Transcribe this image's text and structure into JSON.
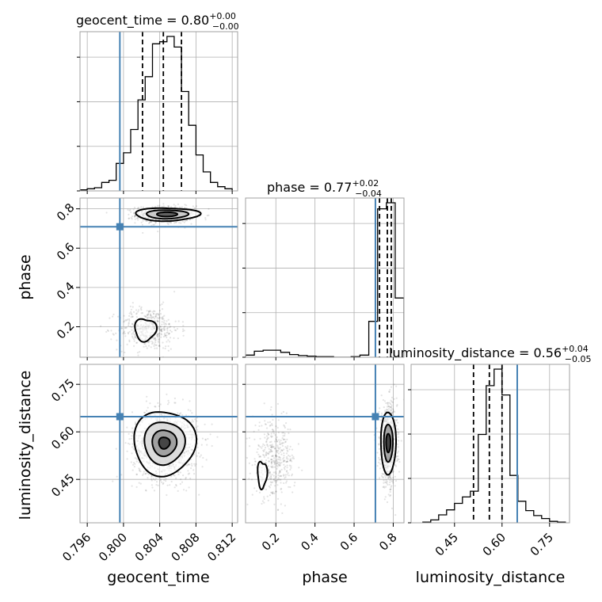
{
  "chart_data": {
    "type": "scatter",
    "subtype": "corner-plot",
    "parameters": [
      "geocent_time",
      "phase",
      "luminosity_distance"
    ],
    "titles": [
      {
        "param": "geocent_time",
        "text": "geocent_time = 0.80",
        "sup": "+0.00",
        "sub": "−0.00"
      },
      {
        "param": "phase",
        "text": "phase = 0.77",
        "sup": "+0.02",
        "sub": "−0.04"
      },
      {
        "param": "luminosity_distance",
        "text": "luminosity_distance = 0.56",
        "sup": "+0.04",
        "sub": "−0.05"
      }
    ],
    "ranges": {
      "geocent_time": [
        0.7952,
        0.8126
      ],
      "phase": [
        0.045,
        0.855
      ],
      "luminosity_distance": [
        0.313,
        0.813
      ]
    },
    "ticks": {
      "geocent_time": [
        0.796,
        0.8,
        0.804,
        0.808,
        0.812
      ],
      "phase": [
        0.2,
        0.4,
        0.6,
        0.8
      ],
      "luminosity_distance": [
        0.45,
        0.6,
        0.75
      ]
    },
    "tick_labels": {
      "geocent_time": [
        "0.796",
        "0.800",
        "0.804",
        "0.808",
        "0.812"
      ],
      "phase": [
        "0.2",
        "0.4",
        "0.6",
        "0.8"
      ],
      "luminosity_distance": [
        "0.45",
        "0.60",
        "0.75"
      ]
    },
    "truths": {
      "geocent_time": 0.7996,
      "phase": 0.709,
      "luminosity_distance": 0.648
    },
    "truth_color": "#4682b4",
    "quantiles": {
      "geocent_time": [
        0.8021,
        0.8044,
        0.8064
      ],
      "phase": [
        0.73,
        0.77,
        0.79
      ],
      "luminosity_distance": [
        0.51,
        0.56,
        0.6
      ]
    },
    "histograms": {
      "geocent_time": {
        "edges": [
          0.7952,
          0.796,
          0.7968,
          0.7976,
          0.7984,
          0.7992,
          0.8,
          0.8008,
          0.8016,
          0.8024,
          0.8032,
          0.804,
          0.8048,
          0.8056,
          0.8064,
          0.8072,
          0.808,
          0.8088,
          0.8096,
          0.8104,
          0.8112,
          0.812
        ],
        "counts": [
          1,
          2,
          3,
          8,
          10,
          26,
          36,
          58,
          86,
          108,
          139,
          141,
          146,
          136,
          94,
          62,
          34,
          18,
          8,
          4,
          2
        ]
      },
      "phase": {
        "edges": [
          0.045,
          0.09,
          0.135,
          0.18,
          0.225,
          0.27,
          0.315,
          0.36,
          0.405,
          0.45,
          0.495,
          0.54,
          0.585,
          0.63,
          0.675,
          0.72,
          0.765,
          0.81,
          0.855
        ],
        "counts": [
          4,
          11,
          13,
          13,
          9,
          5,
          3,
          2,
          1,
          1,
          0,
          0,
          1,
          4,
          66,
          273,
          284,
          109
        ]
      },
      "luminosity_distance": {
        "edges": [
          0.35,
          0.375,
          0.4,
          0.425,
          0.45,
          0.475,
          0.5,
          0.525,
          0.55,
          0.575,
          0.6,
          0.625,
          0.65,
          0.675,
          0.7,
          0.725,
          0.75,
          0.775,
          0.8
        ],
        "counts": [
          1,
          4,
          11,
          18,
          27,
          36,
          44,
          123,
          191,
          214,
          178,
          66,
          30,
          17,
          10,
          6,
          2,
          1
        ]
      }
    },
    "axis_labels": {
      "geocent_time": "geocent_time",
      "phase": "phase",
      "luminosity_distance": "luminosity_distance"
    },
    "grid": true
  }
}
